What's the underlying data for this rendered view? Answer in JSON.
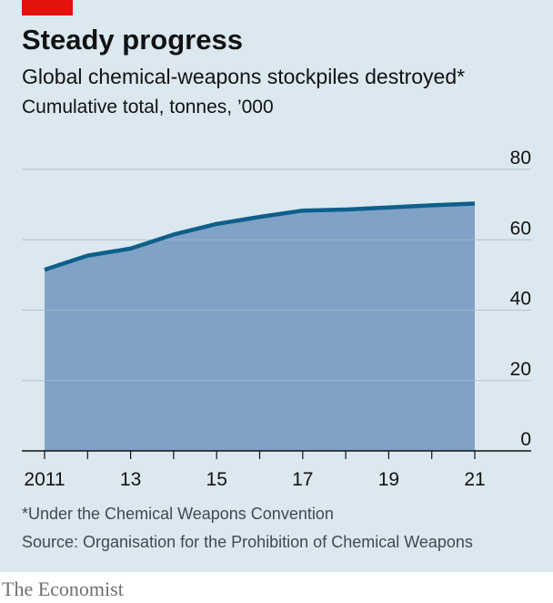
{
  "header": {
    "title": "Steady progress",
    "subtitle": "Global chemical-weapons stockpiles destroyed*",
    "units": "Cumulative total, tonnes, ’000"
  },
  "footer": {
    "footnote": "*Under the Chemical Weapons Convention",
    "source": "Source: Organisation for the Prohibition of Chemical Weapons",
    "brand": "The Economist"
  },
  "colors": {
    "brand_red": "#e3120b",
    "panel": "#dbe8f0",
    "area_fill": "#7fa2c6",
    "line": "#0e5f8a",
    "gridline": "#aab8c2"
  },
  "chart_data": {
    "type": "area",
    "x": [
      2011,
      2012,
      2013,
      2014,
      2015,
      2016,
      2017,
      2018,
      2019,
      2020,
      2021
    ],
    "values": [
      51.5,
      55.5,
      57.5,
      61.5,
      64.5,
      66.5,
      68.3,
      68.6,
      69.2,
      69.8,
      70.3
    ],
    "xlim": [
      2011,
      2021
    ],
    "ylim": [
      0,
      80
    ],
    "y_ticks": [
      0,
      20,
      40,
      60,
      80
    ],
    "y_tick_labels": [
      "0",
      "20",
      "40",
      "60",
      "80"
    ],
    "x_ticks": [
      2011,
      2013,
      2015,
      2017,
      2019,
      2021
    ],
    "x_tick_labels": [
      "2011",
      "13",
      "15",
      "17",
      "19",
      "21"
    ],
    "y_axis_side": "right",
    "grid": true
  }
}
